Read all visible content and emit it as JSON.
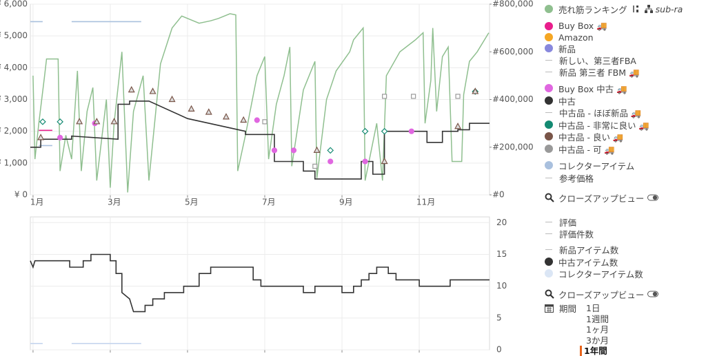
{
  "chart_data": [
    {
      "type": "line",
      "xlim": [
        0.93,
        12.82
      ],
      "xticks": [
        {
          "value": 1,
          "label": "1月"
        },
        {
          "value": 3,
          "label": "3月"
        },
        {
          "value": 5,
          "label": "5月"
        },
        {
          "value": 7,
          "label": "7月"
        },
        {
          "value": 9,
          "label": "9月"
        },
        {
          "value": 11,
          "label": "11月"
        }
      ],
      "ylim": [
        0,
        6000
      ],
      "yticks": [
        {
          "value": 0,
          "label": "¥ 0"
        },
        {
          "value": 1000,
          "label": "¥ 1,000"
        },
        {
          "value": 2000,
          "label": "¥ 2,000"
        },
        {
          "value": 3000,
          "label": "¥ 3,000"
        },
        {
          "value": 4000,
          "label": "¥ 4,000"
        },
        {
          "value": 5000,
          "label": "¥ 5,000"
        },
        {
          "value": 6000,
          "label": "¥ 6,000"
        }
      ],
      "y2lim": [
        0,
        800000
      ],
      "y2ticks": [
        {
          "value": 0,
          "label": "#0"
        },
        {
          "value": 200000,
          "label": "#200,000"
        },
        {
          "value": 400000,
          "label": "#400,000"
        },
        {
          "value": 600000,
          "label": "#600,000"
        },
        {
          "value": 800000,
          "label": "#800,000"
        }
      ],
      "grid": true,
      "series": [
        {
          "color": "#a9c0de",
          "x": [
            0.93,
            1.25,
            1.3,
            2.0,
            3.8,
            3.85,
            1.15,
            1.5
          ],
          "values": [
            5450,
            5450,
            null,
            5450,
            5450,
            null,
            1550,
            1550
          ]
        },
        {
          "color": "#8fbf8f",
          "axis": "y2",
          "x": [
            1.0,
            1.05,
            1.15,
            1.3,
            1.35,
            1.65,
            1.7,
            1.85,
            2.0,
            2.15,
            2.25,
            2.4,
            2.55,
            2.65,
            2.9,
            3.0,
            3.1,
            3.3,
            3.45,
            3.6,
            3.85,
            4.0,
            4.3,
            4.6,
            4.85,
            5.3,
            5.6,
            5.8,
            6.1,
            6.25,
            6.3,
            6.5,
            6.8,
            7.0,
            7.1,
            7.3,
            7.5,
            7.65,
            7.7,
            8.0,
            8.3,
            8.35,
            8.6,
            8.85,
            9.2,
            9.3,
            9.55,
            9.6,
            9.9,
            10.05,
            10.15,
            10.5,
            10.9,
            11.1,
            11.15,
            11.3,
            11.35,
            11.45,
            11.6,
            11.75,
            11.85,
            12.1,
            12.15,
            12.3,
            12.5,
            12.8
          ],
          "values": [
            500000,
            150000,
            300000,
            500000,
            570000,
            570000,
            100000,
            250000,
            150000,
            520000,
            100000,
            350000,
            450000,
            60000,
            400000,
            30000,
            300000,
            600000,
            10000,
            350000,
            500000,
            60000,
            550000,
            700000,
            750000,
            720000,
            730000,
            740000,
            760000,
            755000,
            100000,
            250000,
            500000,
            580000,
            150000,
            380000,
            500000,
            620000,
            120000,
            440000,
            560000,
            70000,
            400000,
            520000,
            600000,
            650000,
            700000,
            60000,
            300000,
            60000,
            500000,
            600000,
            650000,
            680000,
            300000,
            480000,
            700000,
            350000,
            580000,
            620000,
            140000,
            140000,
            420000,
            560000,
            600000,
            680000
          ]
        },
        {
          "color": "#e91e8c",
          "x": [
            1.15,
            1.5
          ],
          "values": [
            2030,
            2030
          ]
        },
        {
          "color": "#333333",
          "x": [
            0.93,
            1.2,
            1.2,
            2.0,
            2.0,
            3.2,
            3.2,
            3.5,
            3.5,
            4.0,
            5.0,
            6.5,
            6.5,
            7.25,
            7.25,
            8.0,
            8.0,
            8.3,
            8.3,
            9.5,
            9.5,
            9.8,
            9.8,
            10.1,
            10.1,
            11.2,
            11.2,
            11.6,
            11.6,
            12.0,
            12.0,
            12.3,
            12.3,
            12.82
          ],
          "values": [
            1500,
            1500,
            1750,
            1750,
            1850,
            1750,
            2850,
            2850,
            2950,
            2950,
            2400,
            2000,
            1900,
            1900,
            1050,
            1050,
            750,
            750,
            500,
            500,
            1050,
            1050,
            650,
            650,
            2000,
            2000,
            1650,
            1650,
            2000,
            2000,
            2050,
            2050,
            2250,
            2250
          ]
        },
        {
          "color": "#138a72",
          "line": false,
          "marker": "diamond",
          "x": [
            1.25,
            1.7,
            8.7,
            9.6,
            10.1,
            12.45
          ],
          "values": [
            2300,
            2300,
            1400,
            2000,
            2000,
            3250
          ]
        },
        {
          "color": "#e067e0",
          "line": false,
          "marker": "circle",
          "x": [
            1.7,
            2.6,
            6.8,
            7.25,
            7.75,
            8.7,
            9.6,
            10.8
          ],
          "values": [
            1800,
            2250,
            2350,
            1400,
            1400,
            1050,
            1050,
            2000
          ]
        },
        {
          "color": "#795548",
          "line": false,
          "marker": "triangle",
          "x": [
            1.2,
            2.2,
            2.65,
            3.1,
            3.55,
            4.1,
            4.6,
            5.1,
            5.55,
            6.0,
            6.45,
            8.35,
            10.1,
            12.0,
            12.45
          ],
          "values": [
            1800,
            2300,
            2300,
            2300,
            3300,
            3250,
            3000,
            2700,
            2600,
            2450,
            2350,
            1400,
            1050,
            2150,
            3250
          ]
        },
        {
          "color": "#999999",
          "line": false,
          "marker": "square",
          "x": [
            7.0,
            8.3,
            10.1,
            10.85,
            12.0
          ],
          "values": [
            2300,
            900,
            3100,
            3100,
            3100
          ]
        }
      ]
    },
    {
      "type": "line",
      "xlim": [
        0.93,
        12.82
      ],
      "xticks": [
        1,
        3,
        5,
        7,
        9,
        11
      ],
      "show_xtick_labels": false,
      "ylim": [
        0,
        20.9
      ],
      "yticks": [
        0,
        5,
        10,
        15,
        20
      ],
      "yaxis_side": "right",
      "grid": true,
      "series": [
        {
          "color": "#c5d5ee",
          "x": [
            0.93,
            1.25,
            1.3,
            2.0,
            3.8
          ],
          "values": [
            1,
            1,
            null,
            1,
            1
          ]
        },
        {
          "color": "#333333",
          "x": [
            0.93,
            1.0,
            1.05,
            1.95,
            1.95,
            2.3,
            2.3,
            2.5,
            2.5,
            3.0,
            3.0,
            3.15,
            3.15,
            3.3,
            3.3,
            3.5,
            3.55,
            3.6,
            3.9,
            3.9,
            4.1,
            4.1,
            4.4,
            4.4,
            4.9,
            4.9,
            5.3,
            5.3,
            5.6,
            5.6,
            6.7,
            6.7,
            6.9,
            6.9,
            8.0,
            8.0,
            8.3,
            8.3,
            9.0,
            9.0,
            9.3,
            9.3,
            9.5,
            9.5,
            9.7,
            9.7,
            9.9,
            9.9,
            10.2,
            10.2,
            10.4,
            10.4,
            11.0,
            11.0,
            11.8,
            11.8,
            12.82
          ],
          "values": [
            14,
            13,
            14,
            14,
            13,
            13,
            14,
            14,
            15,
            15,
            14,
            14,
            12,
            12,
            9,
            8,
            7,
            6,
            6,
            7,
            7,
            8,
            8,
            9,
            9,
            10,
            10,
            12,
            12,
            13,
            13,
            11,
            11,
            10,
            10,
            9,
            9,
            10,
            10,
            9,
            9,
            10,
            10,
            11,
            11,
            12,
            12,
            13,
            13,
            12,
            12,
            11,
            11,
            10,
            10,
            11,
            11
          ]
        }
      ]
    }
  ],
  "legend": [
    {
      "label": "売れ筋ランキング",
      "icon": "dot",
      "color": "#8fbf8f"
    },
    {
      "label": "Buy Box 🚚",
      "icon": "dot",
      "color": "#e91e8c"
    },
    {
      "label": "Amazon",
      "icon": "dot",
      "color": "#f5a623"
    },
    {
      "label": "新品",
      "icon": "dot",
      "color": "#8888dd"
    },
    {
      "label": "新しい、第三者FBA",
      "icon": "dash",
      "color": "#bbbbbb"
    },
    {
      "label": "新品 第三者 FBM 🚚",
      "icon": "dash",
      "color": "#bbbbbb"
    },
    {
      "label": "Buy Box 中古 🚚",
      "icon": "dot",
      "color": "#e067e0"
    },
    {
      "label": "中古",
      "icon": "dot",
      "color": "#333333"
    },
    {
      "label": "中古品 - ほぼ新品 🚚",
      "icon": "dash",
      "color": "#bbbbbb"
    },
    {
      "label": "中古品 - 非常に良い 🚚",
      "icon": "dot",
      "color": "#138a72"
    },
    {
      "label": "中古品 - 良い 🚚",
      "icon": "dot",
      "color": "#795548"
    },
    {
      "label": "中古品 - 可 🚚",
      "icon": "dot",
      "color": "#999999"
    },
    {
      "label": "コレクターアイテム",
      "icon": "dot",
      "color": "#a9c0de"
    },
    {
      "label": "参考価格",
      "icon": "dash",
      "color": "#bbbbbb"
    }
  ],
  "legend_extra": "sub-ra",
  "legend2": [
    {
      "label": "評価",
      "icon": "dash",
      "color": "#bbbbbb"
    },
    {
      "label": "評価件数",
      "icon": "dash",
      "color": "#bbbbbb"
    },
    {
      "label": "新品アイテム数",
      "icon": "dash",
      "color": "#bbbbbb"
    },
    {
      "label": "中古アイテム数",
      "icon": "dot",
      "color": "#333333"
    },
    {
      "label": "コレクターアイテム数",
      "icon": "dot",
      "color": "#dbe6f5"
    }
  ],
  "closeup": "クローズアップビュー",
  "period": {
    "label": "期間",
    "options": [
      "1日",
      "1週間",
      "1ヶ月",
      "3か月",
      "1年間"
    ],
    "selected": 4
  }
}
